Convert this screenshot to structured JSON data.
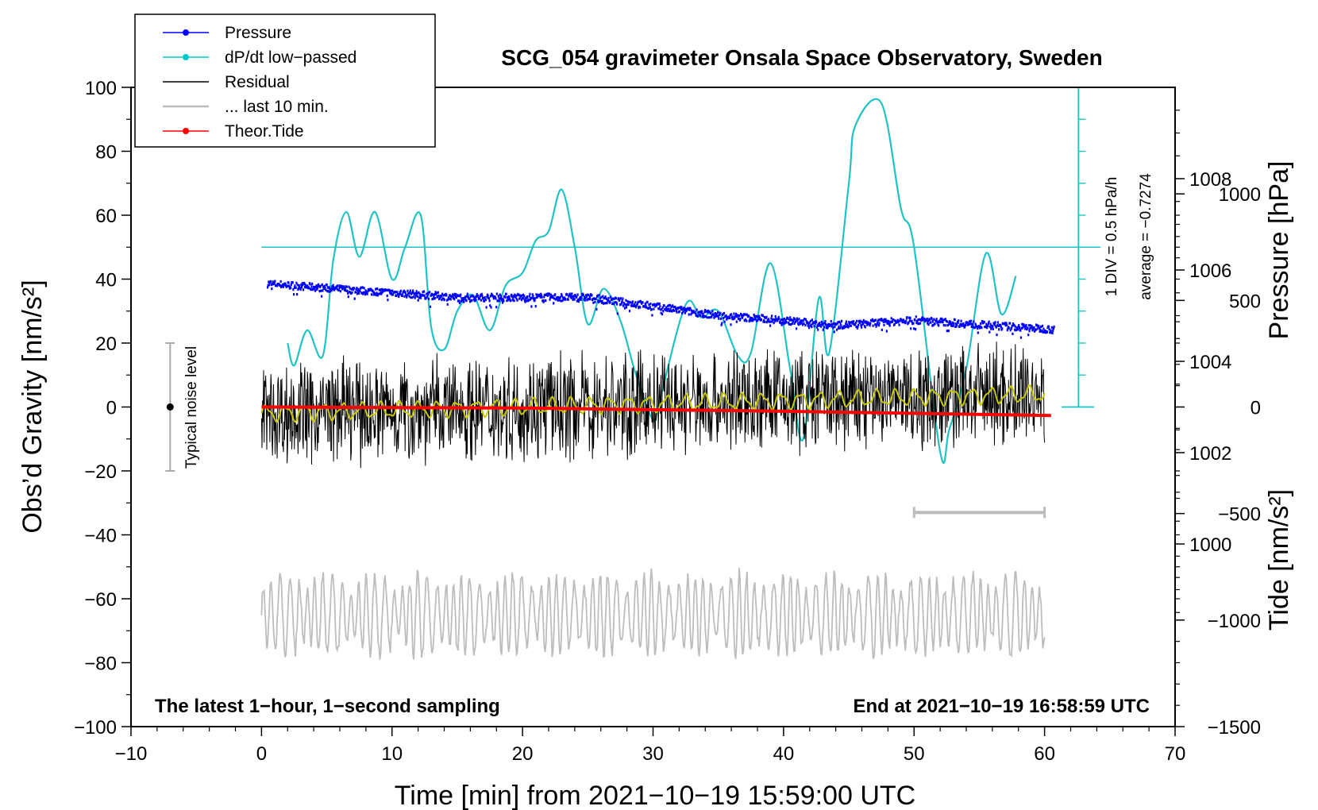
{
  "chart_data": {
    "type": "line",
    "title": "SCG_054 gravimeter Onsala Space Observatory, Sweden",
    "xlabel": "Time [min] from 2021−10−19 15:59:00 UTC",
    "ylabel_left": "Obs’d Gravity [nm/s²]",
    "ylabel_right_pressure": "Pressure [hPa]",
    "ylabel_right_tide": "Tide [nm/s²]",
    "xlim": [
      -10,
      70
    ],
    "ylim": [
      -100,
      100
    ],
    "pressure_lim": [
      996,
      1010
    ],
    "tide_lim": [
      -1500,
      1500
    ],
    "x_ticks": [
      "−10",
      "0",
      "10",
      "20",
      "30",
      "40",
      "50",
      "60",
      "70"
    ],
    "y_ticks": [
      "−100",
      "−80",
      "−60",
      "−40",
      "−20",
      "0",
      "20",
      "40",
      "60",
      "80",
      "100"
    ],
    "pressure_ticks": [
      "1000",
      "1002",
      "1004",
      "1006",
      "1008"
    ],
    "tide_ticks": [
      "−1500",
      "−1000",
      "−500",
      "0",
      "500",
      "1000"
    ],
    "legend": [
      {
        "label": "Pressure",
        "color": "#0000ff",
        "marker": "dot"
      },
      {
        "label": "dP/dt low−passed",
        "color": "#00c8c8",
        "marker": "dot"
      },
      {
        "label": "Residual",
        "color": "#000000",
        "marker": "none"
      },
      {
        "label": "... last 10 min.",
        "color": "#bbbbbb",
        "marker": "none"
      },
      {
        "label": "Theor.Tide",
        "color": "#ff0000",
        "marker": "dot"
      }
    ],
    "legend_position": "top-left",
    "series": [
      {
        "name": "Pressure",
        "axis": "pressure",
        "color": "#0000ff",
        "x": [
          0.5,
          5,
          10,
          15,
          20,
          25,
          30,
          35,
          40,
          43,
          45,
          50,
          55,
          60.5
        ],
        "values": [
          1005.7,
          1005.6,
          1005.5,
          1005.4,
          1005.4,
          1005.4,
          1005.2,
          1005.0,
          1004.9,
          1004.8,
          1004.8,
          1004.9,
          1004.8,
          1004.7
        ]
      },
      {
        "name": "dP/dt low−passed",
        "axis": "left",
        "color": "#00c8c8",
        "x": [
          2,
          2.5,
          3.5,
          4.7,
          5.5,
          6.5,
          7.5,
          8.7,
          10,
          11,
          12.2,
          13,
          14,
          15,
          16.2,
          17.5,
          18.7,
          20,
          21,
          22,
          23,
          24,
          25,
          26.2,
          27.5,
          28.7,
          30,
          30.5,
          32.5,
          33.7,
          35,
          36.5,
          37.5,
          39,
          40.5,
          41.5,
          42.7,
          43.5,
          45,
          45.5,
          47.5,
          49,
          50,
          52,
          52.7,
          54,
          55.5,
          56.7,
          57.8
        ],
        "values": [
          20,
          13,
          24,
          16,
          46,
          61,
          47,
          61,
          40,
          50,
          60,
          25,
          18,
          30,
          35,
          24,
          38,
          42,
          52,
          55,
          68,
          50,
          26,
          37,
          27,
          10,
          -4,
          2,
          32,
          28,
          30,
          16,
          17,
          45,
          12,
          -10,
          34,
          17,
          70,
          88,
          95,
          62,
          50,
          -14,
          -7,
          12,
          48,
          29,
          41
        ]
      },
      {
        "name": "Residual",
        "axis": "left",
        "color": "#000000",
        "x_range": [
          0,
          60
        ],
        "amplitude": 17,
        "trend_x": [
          0,
          10,
          20,
          30,
          40,
          50,
          60
        ],
        "trend": [
          -2,
          -1,
          0,
          1,
          2,
          3,
          4
        ]
      },
      {
        "name": "... last 10 min.",
        "axis": "left",
        "color": "#bbbbbb",
        "x_range": [
          0,
          60
        ],
        "center": -65,
        "amplitude": 13
      },
      {
        "name": "Theor.Tide",
        "axis": "tide",
        "color": "#ff0000",
        "x": [
          0,
          20,
          40,
          60.5
        ],
        "values": [
          0,
          -5,
          -20,
          -40
        ]
      }
    ],
    "annotations": {
      "reference_line": {
        "label_1": "1 DIV = 0.5 hPa/h",
        "label_2": "average = −0.7274",
        "y": 50
      },
      "noise_bar": {
        "label": "Typical noise level",
        "x": -7,
        "range": [
          -20,
          20
        ]
      },
      "ten_min_bar": {
        "x": [
          50,
          60
        ],
        "y": -33
      },
      "bottom_left": "The latest 1−hour, 1−second sampling",
      "bottom_right": "End at 2021−10−19 16:58:59 UTC"
    }
  }
}
